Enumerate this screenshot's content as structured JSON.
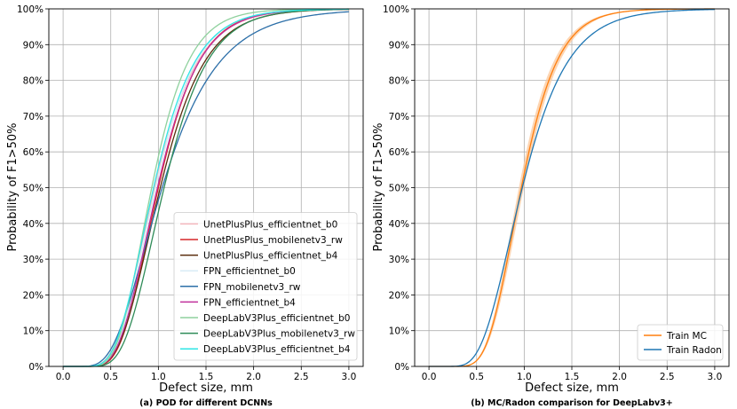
{
  "panels": [
    {
      "caption": "(a) POD for different DCNNs",
      "legend_position": "lower-right"
    },
    {
      "caption": "(b) MC/Radon comparison for DeepLabv3+",
      "legend_position": "lower-right"
    }
  ],
  "chart_data": [
    {
      "type": "line",
      "xlabel": "Defect size, mm",
      "ylabel": "Probability of F1>50%",
      "xlim": [
        -0.15,
        3.15
      ],
      "ylim": [
        0,
        100
      ],
      "xticks": [
        "0.0",
        "0.5",
        "1.0",
        "1.5",
        "2.0",
        "2.5",
        "3.0"
      ],
      "yticks": [
        "0%",
        "10%",
        "20%",
        "30%",
        "40%",
        "50%",
        "60%",
        "70%",
        "80%",
        "90%",
        "100%"
      ],
      "grid": true,
      "series": [
        {
          "name": "UnetPlusPlus_efficientnet_b0",
          "color": "#f4b6bd",
          "mu": 0.96,
          "sigma": 0.37
        },
        {
          "name": "UnetPlusPlus_mobilenetv3_rw",
          "color": "#d62728",
          "mu": 1.0,
          "sigma": 0.34
        },
        {
          "name": "UnetPlusPlus_efficientnet_b4",
          "color": "#5a2d0c",
          "mu": 1.02,
          "sigma": 0.36
        },
        {
          "name": "FPN_efficientnet_b0",
          "color": "#d8ecf6",
          "mu": 0.97,
          "sigma": 0.35
        },
        {
          "name": "FPN_mobilenetv3_rw",
          "color": "#2c6fa8",
          "mu": 1.04,
          "sigma": 0.44
        },
        {
          "name": "FPN_efficientnet_b4",
          "color": "#c0309c",
          "mu": 0.99,
          "sigma": 0.35
        },
        {
          "name": "DeepLabV3Plus_efficientnet_b0",
          "color": "#8fd19e",
          "mu": 0.93,
          "sigma": 0.33
        },
        {
          "name": "DeepLabV3Plus_mobilenetv3_rw",
          "color": "#2e8b57",
          "mu": 1.06,
          "sigma": 0.34
        },
        {
          "name": "DeepLabV3Plus_efficientnet_b4",
          "color": "#2ee6e6",
          "mu": 0.95,
          "sigma": 0.36
        }
      ]
    },
    {
      "type": "line",
      "xlabel": "Defect size, mm",
      "ylabel": "Probability of F1>50%",
      "xlim": [
        -0.15,
        3.15
      ],
      "ylim": [
        0,
        100
      ],
      "xticks": [
        "0.0",
        "0.5",
        "1.0",
        "1.5",
        "2.0",
        "2.5",
        "3.0"
      ],
      "yticks": [
        "0%",
        "10%",
        "20%",
        "30%",
        "40%",
        "50%",
        "60%",
        "70%",
        "80%",
        "90%",
        "100%"
      ],
      "grid": true,
      "series": [
        {
          "name": "Train MC",
          "color": "#ff7f0e",
          "band_color": "#fbc79a",
          "mu": 0.97,
          "sigma": 0.31,
          "band": 0.035
        },
        {
          "name": "Train Radon",
          "color": "#1f77b4",
          "mu": 0.98,
          "sigma": 0.38
        }
      ]
    }
  ]
}
